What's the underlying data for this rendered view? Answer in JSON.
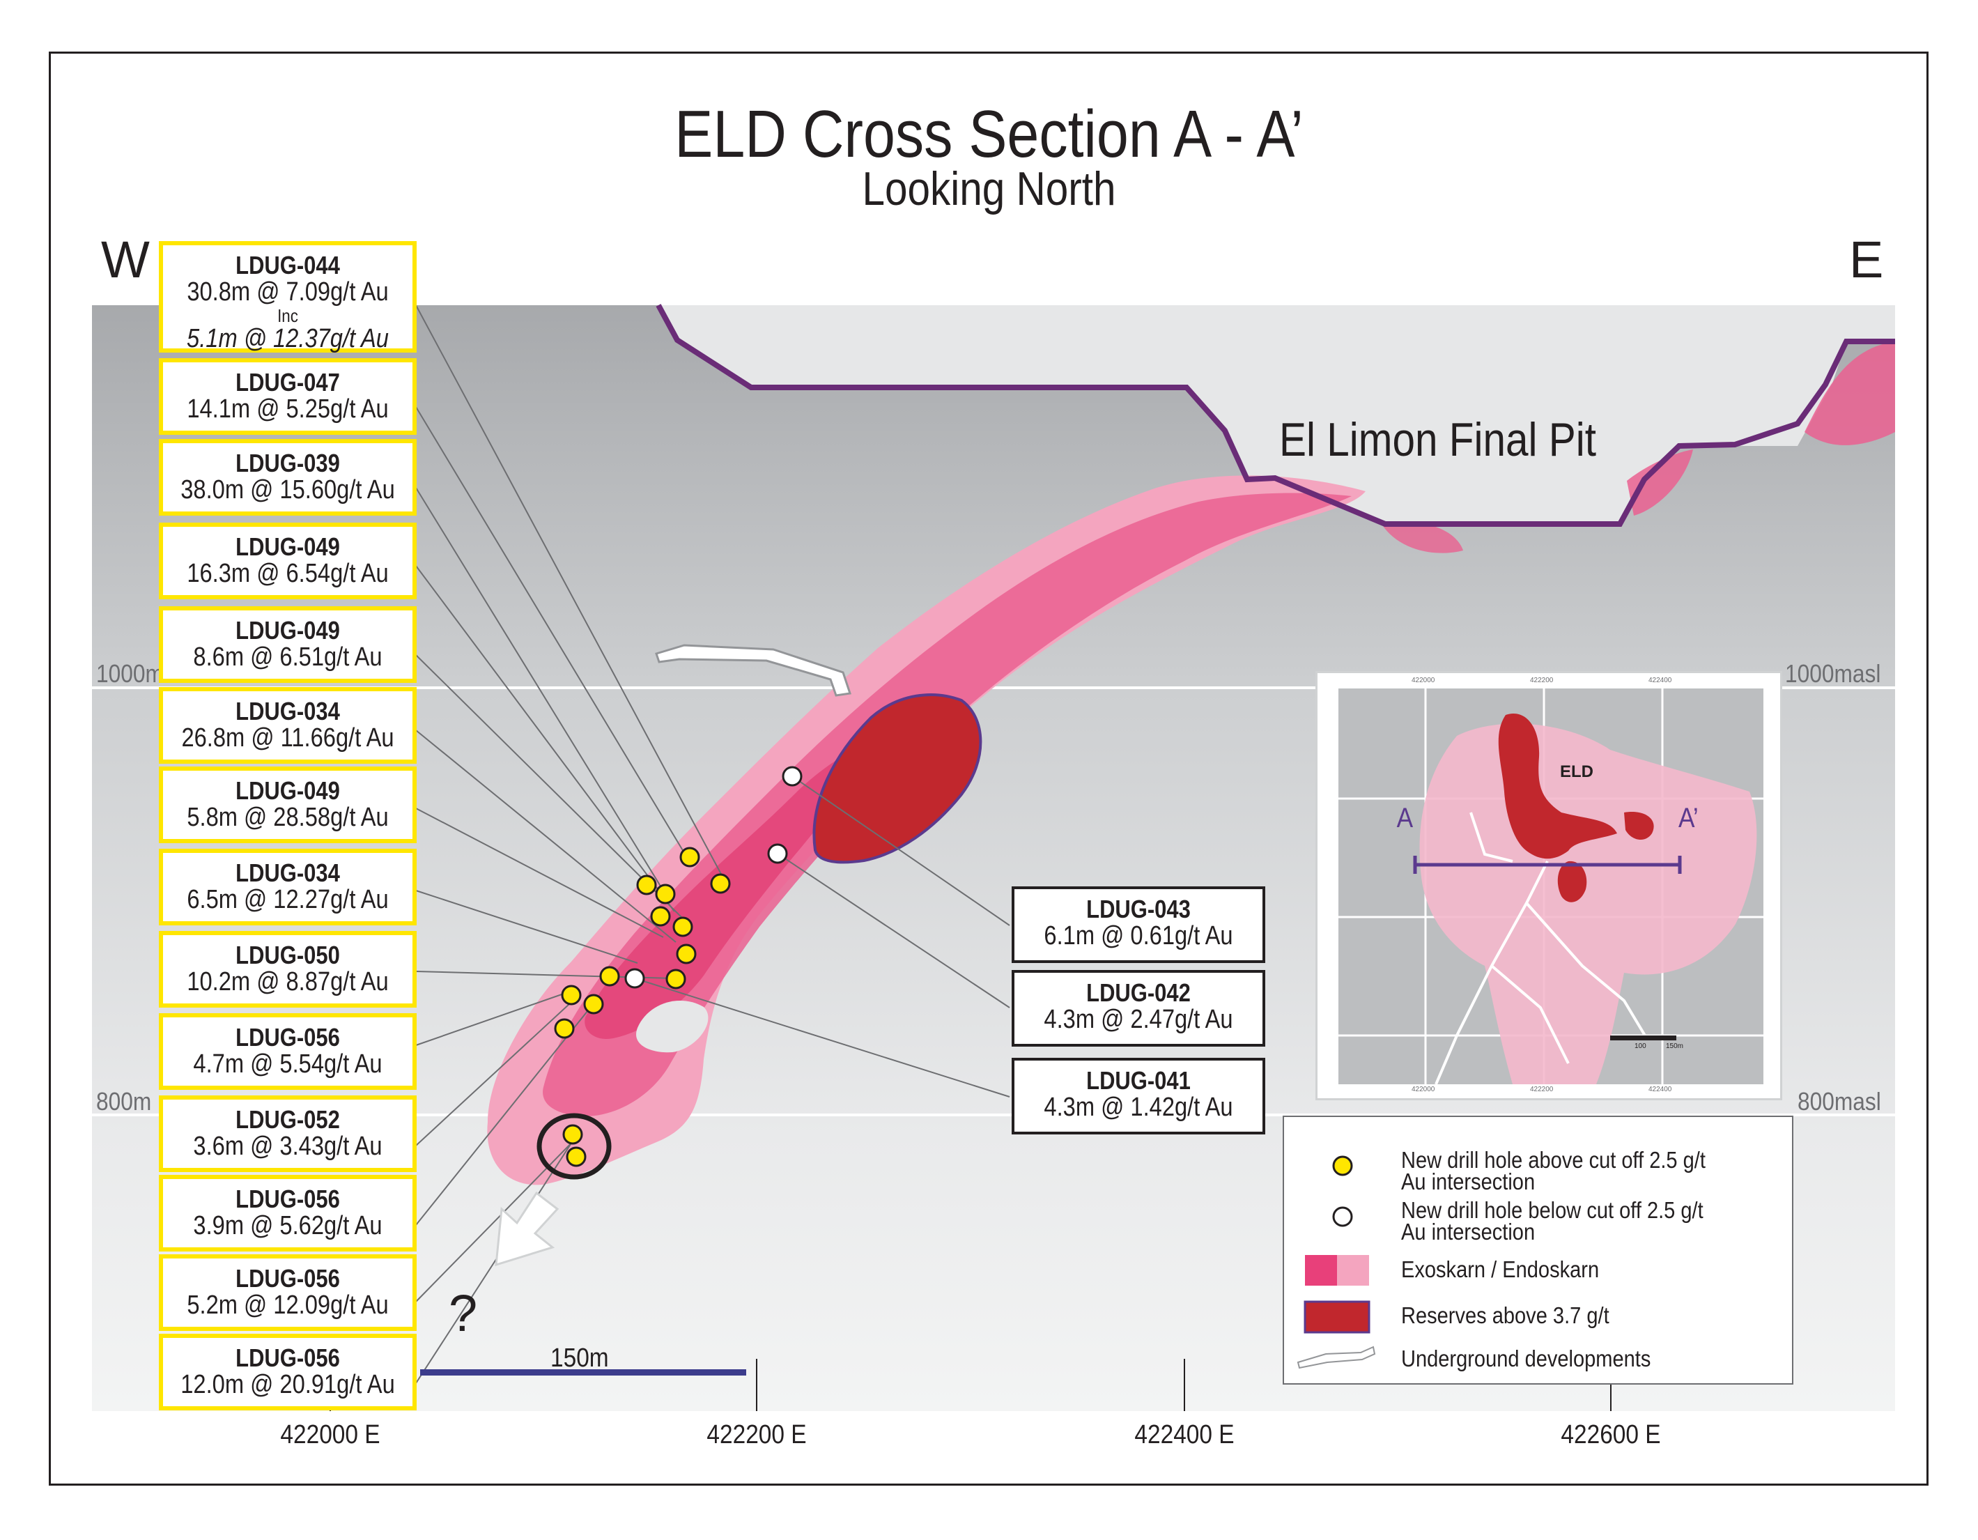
{
  "title": "ELD Cross Section A - A’",
  "subtitle": "Looking North",
  "west_label": "W",
  "east_label": "E",
  "pit_label": "El Limon Final Pit",
  "elevations": {
    "upper_left": "1000m",
    "upper_right": "1000masl",
    "lower_left": "800m",
    "lower_right": "800masl"
  },
  "eastings": [
    "422000 E",
    "422200 E",
    "422400 E",
    "422600 E"
  ],
  "scale_bar_label": "150m",
  "question_mark": "?",
  "left_intercepts": [
    {
      "hole": "LDUG-044",
      "result": "30.8m @ 7.09g/t Au",
      "inc_label": "Inc",
      "inc_result": "5.1m @ 12.37g/t Au"
    },
    {
      "hole": "LDUG-047",
      "result": "14.1m @ 5.25g/t Au"
    },
    {
      "hole": "LDUG-039",
      "result": "38.0m @ 15.60g/t Au"
    },
    {
      "hole": "LDUG-049",
      "result": "16.3m @ 6.54g/t Au"
    },
    {
      "hole": "LDUG-049",
      "result": "8.6m @ 6.51g/t Au"
    },
    {
      "hole": "LDUG-034",
      "result": "26.8m @ 11.66g/t Au"
    },
    {
      "hole": "LDUG-049",
      "result": "5.8m @ 28.58g/t Au"
    },
    {
      "hole": "LDUG-034",
      "result": "6.5m @ 12.27g/t Au"
    },
    {
      "hole": "LDUG-050",
      "result": "10.2m @ 8.87g/t Au"
    },
    {
      "hole": "LDUG-056",
      "result": "4.7m @ 5.54g/t Au"
    },
    {
      "hole": "LDUG-052",
      "result": "3.6m @ 3.43g/t Au"
    },
    {
      "hole": "LDUG-056",
      "result": "3.9m @ 5.62g/t Au"
    },
    {
      "hole": "LDUG-056",
      "result": "5.2m @ 12.09g/t Au"
    },
    {
      "hole": "LDUG-056",
      "result": "12.0m @ 20.91g/t Au"
    }
  ],
  "right_intercepts": [
    {
      "hole": "LDUG-043",
      "result": "6.1m @ 0.61g/t Au"
    },
    {
      "hole": "LDUG-042",
      "result": "4.3m @ 2.47g/t Au"
    },
    {
      "hole": "LDUG-041",
      "result": "4.3m @ 1.42g/t Au"
    }
  ],
  "legend": {
    "above_cutoff": "New drill hole above cut off 2.5 g/t Au intersection",
    "below_cutoff": "New drill hole below cut off 2.5 g/t Au intersection",
    "skarn": "Exoskarn / Endoskarn",
    "reserves": "Reserves above 3.7 g/t",
    "underground": "Underground developments"
  },
  "inset": {
    "deposit_label": "ELD",
    "section_start": "A",
    "section_end": "A’",
    "grid_top": [
      "422000",
      "422200",
      "422400"
    ],
    "grid_bottom": [
      "422000",
      "422200",
      "422400"
    ],
    "scale_ticks": [
      "100",
      "150m"
    ]
  },
  "colors": {
    "collar_above": "#ffe600",
    "collar_below": "#ffffff",
    "skarn_light": "#f4a5bf",
    "skarn_dark": "#e8407a",
    "reserves": "#c1272d",
    "pit_line": "#6a2c77",
    "box_highlight": "#ffe600",
    "scale_bar": "#3c3c8c"
  }
}
